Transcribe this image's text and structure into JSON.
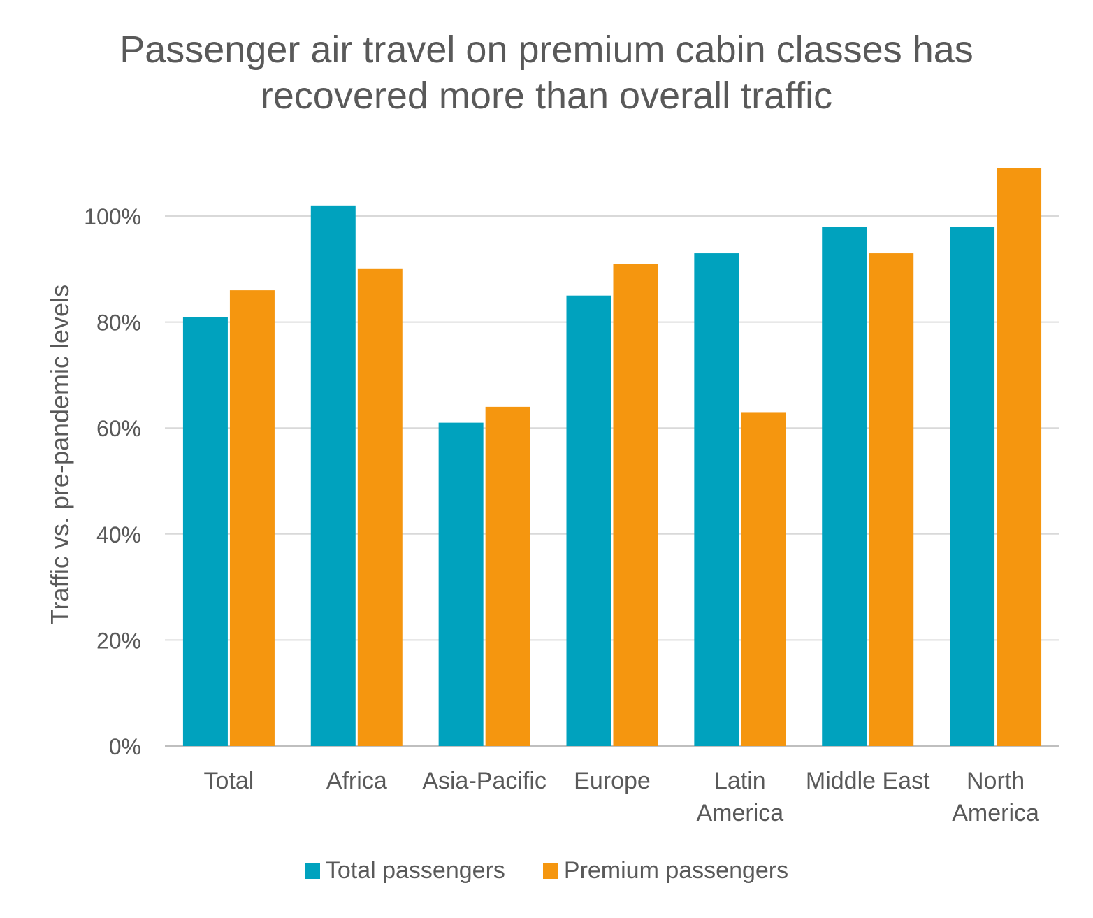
{
  "chart_data": {
    "type": "bar",
    "title_lines": [
      "Passenger air travel on premium cabin classes has",
      "recovered more than overall traffic"
    ],
    "xlabel": "",
    "ylabel": "Traffic vs. pre-pandemic levels",
    "categories": [
      [
        "Total"
      ],
      [
        "Africa"
      ],
      [
        "Asia-Pacific"
      ],
      [
        "Europe"
      ],
      [
        "Latin",
        "America"
      ],
      [
        "Middle East"
      ],
      [
        "North",
        "America"
      ]
    ],
    "series": [
      {
        "name": "Total passengers",
        "color": "#00A2BE",
        "values": [
          81,
          102,
          61,
          85,
          93,
          98,
          98
        ]
      },
      {
        "name": "Premium passengers",
        "color": "#F5960F",
        "values": [
          86,
          90,
          64,
          91,
          63,
          93,
          109
        ]
      }
    ],
    "ylim": [
      0,
      110
    ],
    "yticks": [
      0,
      20,
      40,
      60,
      80,
      100
    ],
    "ytick_labels": [
      "0%",
      "20%",
      "40%",
      "60%",
      "80%",
      "100%"
    ],
    "grid": true,
    "legend_position": "bottom"
  }
}
